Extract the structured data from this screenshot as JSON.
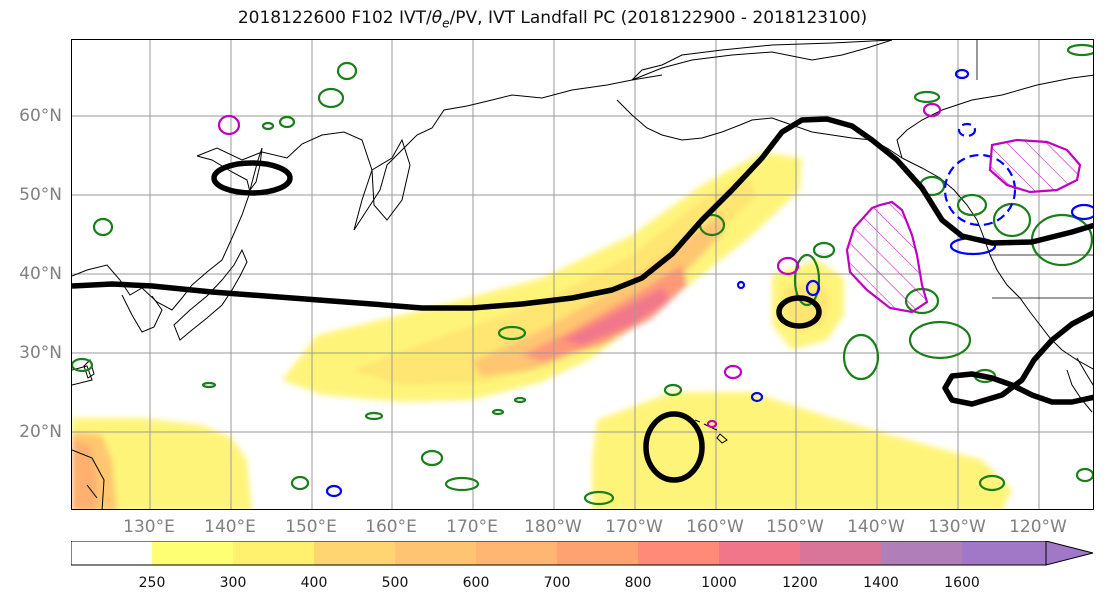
{
  "title": {
    "prefix": "2018122600 F102 IVT/",
    "theta": "θ",
    "theta_sub": "e",
    "suffix": "/PV, IVT Landfall PC (2018122900 - 2018123100)"
  },
  "map": {
    "projection": "PlateCarree",
    "lon_range": [
      118,
      245
    ],
    "lat_range": [
      10,
      70
    ],
    "lat_ticks": [
      "60°N",
      "50°N",
      "40°N",
      "30°N",
      "20°N"
    ],
    "lon_ticks": [
      "130°E",
      "140°E",
      "150°E",
      "160°E",
      "170°E",
      "180°W",
      "170°W",
      "160°W",
      "150°W",
      "140°W",
      "130°W",
      "120°W"
    ],
    "gridlines": true,
    "colors": {
      "ivt_contour": "#000000",
      "theta_e_contour": "#1a7f1a",
      "pv_contour_solid": "#0000ff",
      "pv_contour_dashed": "#0000ff",
      "landfall_pc": "#c000c0",
      "coastline": "#000000",
      "gridline": "#999999"
    }
  },
  "colorbar": {
    "orientation": "horizontal",
    "extend": "max",
    "ticks": [
      "250",
      "300",
      "400",
      "500",
      "600",
      "700",
      "800",
      "1000",
      "1200",
      "1400",
      "1600"
    ],
    "colors": [
      "#ffffff",
      "#ffff73",
      "#fff06e",
      "#ffd572",
      "#ffc472",
      "#ffb673",
      "#ffa272",
      "#ff8a78",
      "#f2768a",
      "#d97598",
      "#b07fba",
      "#a178c8"
    ]
  }
}
